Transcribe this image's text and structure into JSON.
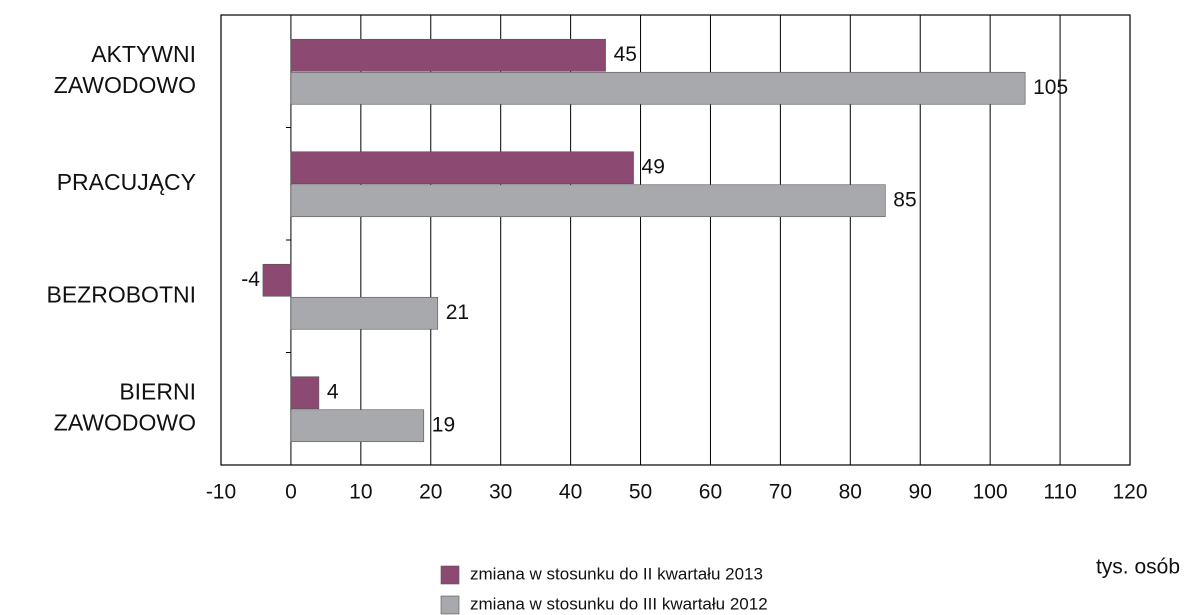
{
  "chart_data": {
    "type": "bar",
    "orientation": "horizontal",
    "categories": [
      "AKTYWNI ZAWODOWO",
      "PRACUJĄCY",
      "BEZROBOTNI",
      "BIERNI ZAWODOWO"
    ],
    "series": [
      {
        "name": "zmiana w stosunku do II kwartału 2013",
        "color": "#8c4a73",
        "values": [
          45,
          49,
          -4,
          4
        ]
      },
      {
        "name": "zmiana w stosunku do III kwartału 2012",
        "color": "#a7a9ac",
        "values": [
          105,
          85,
          21,
          19
        ]
      }
    ],
    "xlabel": "tys. osób",
    "xlim": [
      -10,
      120
    ],
    "xticks": [
      -10,
      0,
      10,
      20,
      30,
      40,
      50,
      60,
      70,
      80,
      90,
      100,
      110,
      120
    ],
    "grid": true,
    "legend": "bottom"
  }
}
